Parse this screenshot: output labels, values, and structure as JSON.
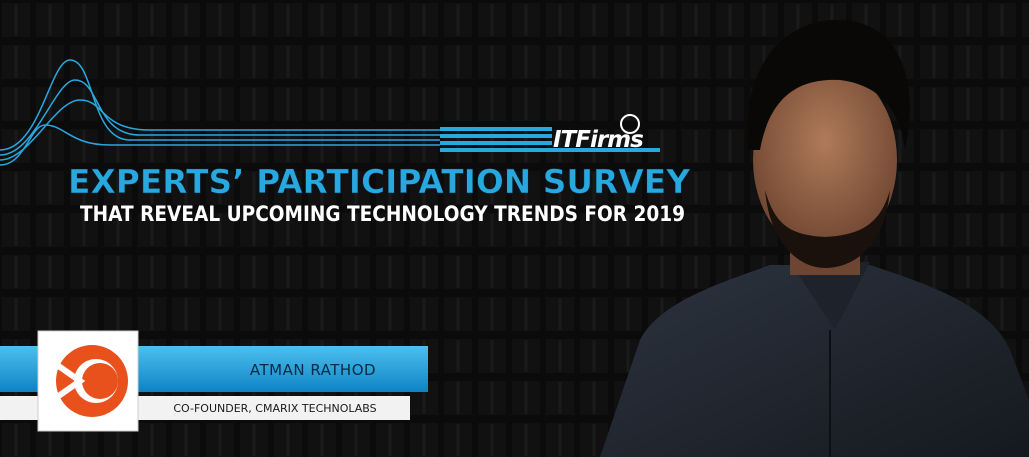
{
  "logo": {
    "text": "ITFirms"
  },
  "header": {
    "title": "EXPERTS’ PARTICIPATION SURVEY",
    "subtitle": "THAT REVEAL UPCOMING TECHNOLOGY TRENDS FOR 2019"
  },
  "profile": {
    "name": "ATMAN RATHOD",
    "role": "CO-FOUNDER, CMARIX TECHNOLABS"
  }
}
